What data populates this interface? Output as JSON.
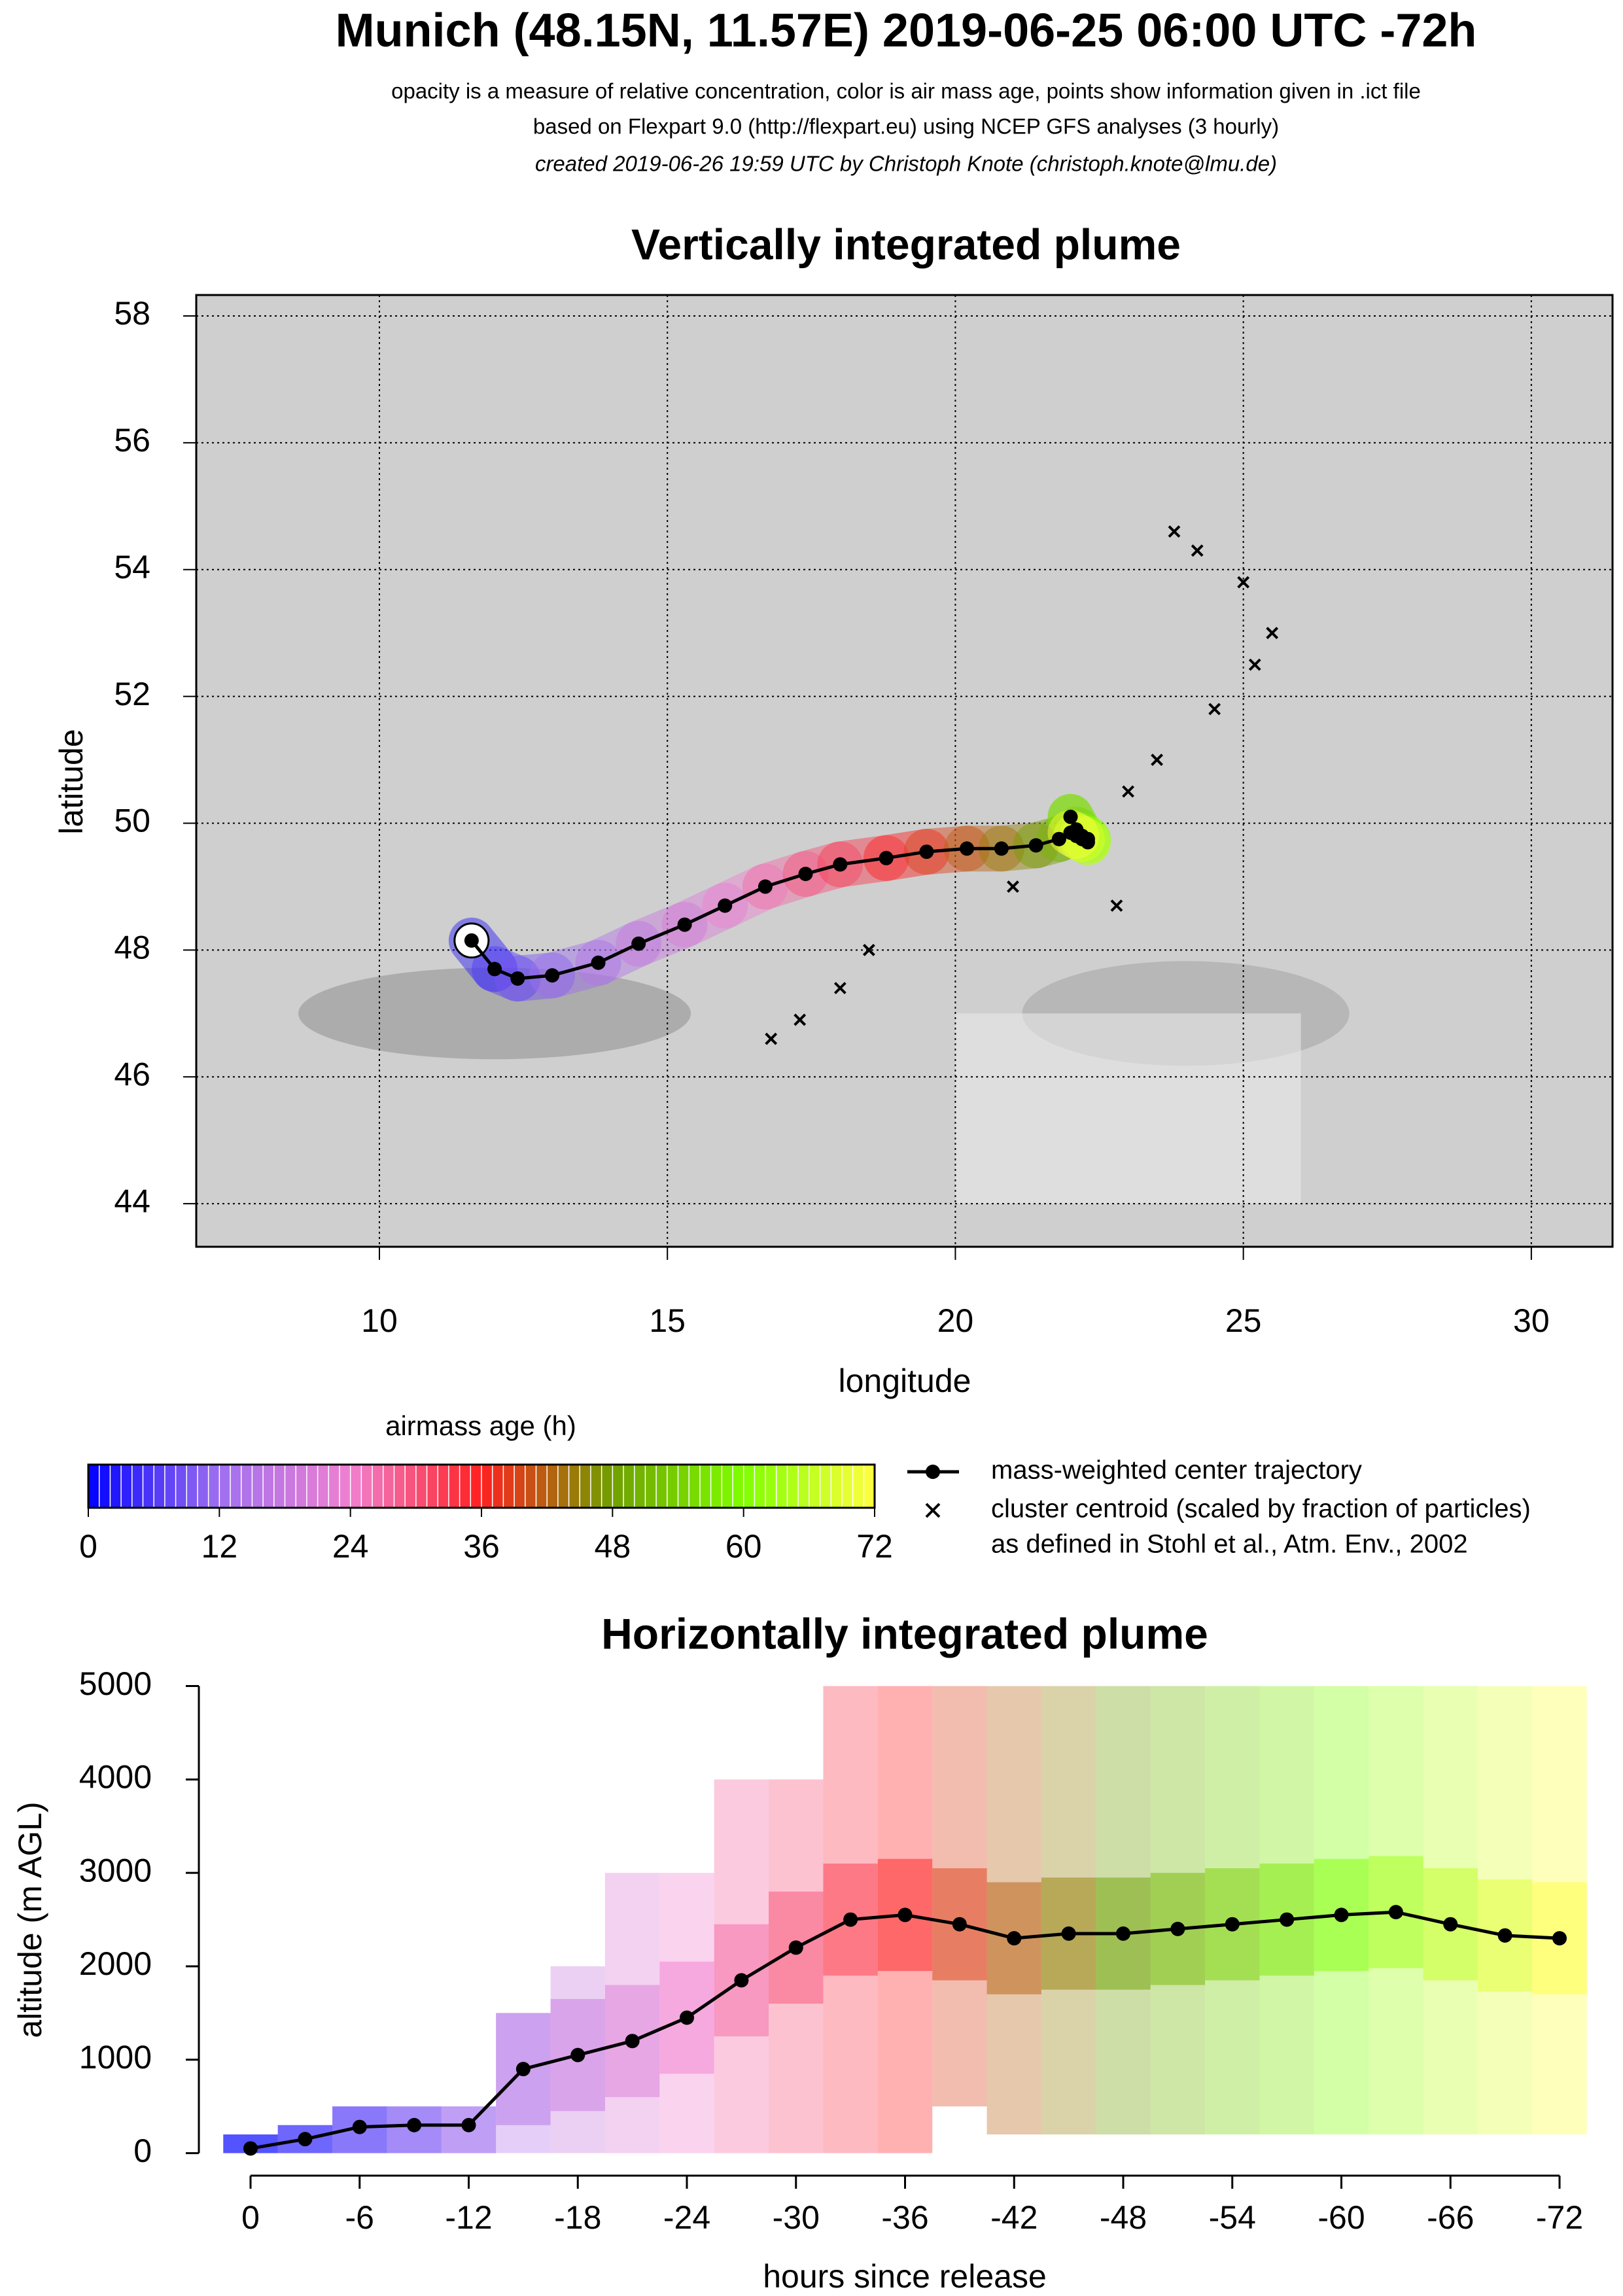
{
  "title": "Munich (48.15N, 11.57E) 2019-06-25 06:00 UTC -72h",
  "subtitles": [
    "opacity is a measure of relative concentration, color is air mass age, points show information given in .ict file",
    "based on Flexpart 9.0 (http://flexpart.eu) using NCEP GFS analyses (3 hourly)"
  ],
  "credit": "created 2019-06-26 19:59 UTC by Christoph Knote (christoph.knote@lmu.de)",
  "chart_data": [
    {
      "type": "map",
      "title": "Vertically integrated plume",
      "xlabel": "longitude",
      "ylabel": "latitude",
      "xlim": [
        6.82,
        31.41
      ],
      "ylim": [
        43.32,
        58.33
      ],
      "xticks": [
        10,
        15,
        20,
        25,
        30
      ],
      "yticks": [
        44,
        46,
        48,
        50,
        52,
        54,
        56,
        58
      ],
      "grid": true,
      "series": [
        {
          "name": "mass-weighted center trajectory",
          "color": "#000000",
          "x": [
            11.6,
            12.0,
            12.4,
            13.0,
            13.8,
            14.5,
            15.3,
            16.0,
            16.7,
            17.4,
            18.0,
            18.8,
            19.5,
            20.2,
            20.8,
            21.4,
            21.8,
            22.1,
            22.0,
            22.2,
            22.3,
            22.3,
            22.2,
            22.1,
            22.0
          ],
          "y": [
            48.15,
            47.7,
            47.55,
            47.6,
            47.8,
            48.1,
            48.4,
            48.7,
            49.0,
            49.2,
            49.35,
            49.45,
            49.55,
            49.6,
            49.6,
            49.65,
            49.75,
            49.9,
            50.1,
            49.8,
            49.75,
            49.7,
            49.75,
            49.8,
            49.85
          ]
        },
        {
          "name": "cluster centroid (scaled by fraction of particles)",
          "color": "#000000",
          "x": [
            23.0,
            23.5,
            24.5,
            25.2,
            25.5,
            25.0,
            24.2,
            23.8,
            18.5,
            18.0,
            17.3,
            16.8,
            21.0,
            22.8
          ],
          "y": [
            50.5,
            51.0,
            51.8,
            52.5,
            53.0,
            53.8,
            54.3,
            54.6,
            48.0,
            47.4,
            46.9,
            46.6,
            49.0,
            48.7
          ]
        }
      ],
      "legend_note": "as defined in Stohl et al., Atm. Env., 2002",
      "colorbar": {
        "title": "airmass age (h)",
        "lim": [
          0,
          72
        ],
        "ticks": [
          0,
          12,
          24,
          36,
          48,
          60,
          72
        ],
        "colors": [
          "#0000ff",
          "#a070f0",
          "#f080d0",
          "#ff2020",
          "#70a000",
          "#80ff00",
          "#ffff40"
        ]
      }
    },
    {
      "type": "line",
      "title": "Horizontally integrated plume",
      "xlabel": "hours since release",
      "ylabel": "altitude (m AGL)",
      "xlim": [
        0,
        -72
      ],
      "ylim": [
        -150,
        5200
      ],
      "xticks": [
        0,
        -6,
        -12,
        -18,
        -24,
        -30,
        -36,
        -42,
        -48,
        -54,
        -60,
        -66,
        -72
      ],
      "yticks": [
        0,
        1000,
        2000,
        3000,
        4000,
        5000
      ],
      "x": [
        0,
        -3,
        -6,
        -9,
        -12,
        -15,
        -18,
        -21,
        -24,
        -27,
        -30,
        -33,
        -36,
        -39,
        -42,
        -45,
        -48,
        -51,
        -54,
        -57,
        -60,
        -63,
        -66,
        -69,
        -72
      ],
      "series": [
        {
          "name": "mass-weighted center trajectory",
          "color": "#000000",
          "values": [
            50,
            150,
            280,
            300,
            300,
            900,
            1050,
            1200,
            1450,
            1850,
            2200,
            2500,
            2550,
            2450,
            2300,
            2350,
            2350,
            2400,
            2450,
            2500,
            2550,
            2580,
            2450,
            2330,
            2300
          ]
        }
      ],
      "plume_low": [
        0,
        0,
        0,
        0,
        0,
        0,
        0,
        0,
        0,
        0,
        0,
        0,
        0,
        500,
        200,
        200,
        200,
        200,
        200,
        200,
        200,
        200,
        200,
        200,
        200
      ],
      "plume_high": [
        200,
        300,
        500,
        500,
        500,
        1500,
        2000,
        3000,
        3000,
        4000,
        4000,
        5000,
        5000,
        5000,
        5000,
        5000,
        5000,
        5000,
        5000,
        5000,
        5000,
        5000,
        5000,
        5000,
        5000
      ]
    }
  ]
}
